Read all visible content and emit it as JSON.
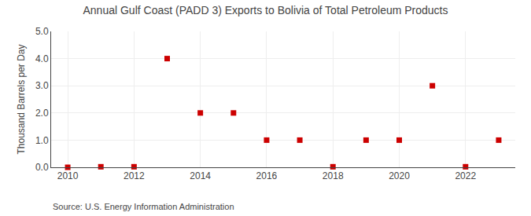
{
  "chart_data": {
    "type": "scatter",
    "marker": "square",
    "title": "Annual Gulf Coast (PADD 3) Exports to Bolivia of Total Petroleum Products",
    "y_label": "Thousand Barrels per Day",
    "annotations": [
      "Source: U.S. Energy Information Administration"
    ],
    "x": [
      2010,
      2011,
      2012,
      2013,
      2014,
      2015,
      2016,
      2017,
      2018,
      2019,
      2020,
      2021,
      2022,
      2023
    ],
    "values": [
      0.0,
      0.02,
      0.02,
      4.0,
      2.0,
      2.0,
      1.0,
      1.0,
      0.02,
      1.0,
      1.0,
      3.0,
      0.02,
      1.0
    ],
    "color": "#cc0000",
    "xlim": [
      2009.5,
      2023.5
    ],
    "xticks": [
      2010,
      2012,
      2014,
      2016,
      2018,
      2020,
      2022
    ],
    "ylim": [
      0.0,
      5.0
    ],
    "yticks": [
      {
        "value": 0.0,
        "label": "0.0"
      },
      {
        "value": 1.0,
        "label": "1.0"
      },
      {
        "value": 2.0,
        "label": "2.0"
      },
      {
        "value": 3.0,
        "label": "3.0"
      },
      {
        "value": 4.0,
        "label": "4.0"
      },
      {
        "value": 5.0,
        "label": "5.0"
      }
    ],
    "grid": true
  }
}
